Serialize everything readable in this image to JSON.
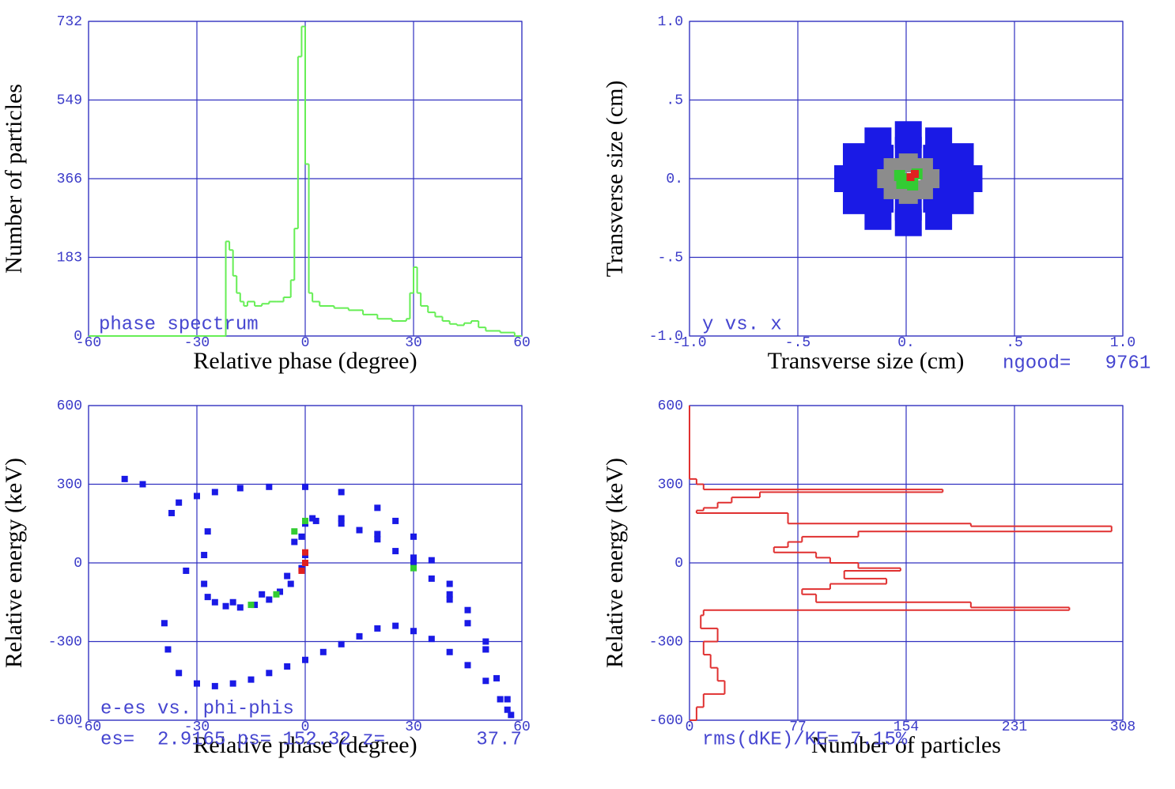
{
  "chart_data": [
    {
      "type": "step",
      "xlabel": "Relative phase (degree)",
      "ylabel": "Number of particles",
      "annotations": [
        "phase spectrum"
      ],
      "x": [
        -60,
        -22,
        -21,
        -20,
        -19,
        -18,
        -17,
        -16,
        -14,
        -12,
        -10,
        -8,
        -6,
        -4,
        -3,
        -2,
        -1,
        0,
        1,
        2,
        4,
        8,
        12,
        16,
        20,
        24,
        28,
        29,
        30,
        31,
        32,
        34,
        36,
        38,
        40,
        42,
        44,
        46,
        48,
        50,
        54,
        58,
        60
      ],
      "values": [
        0,
        220,
        200,
        140,
        100,
        80,
        70,
        80,
        70,
        75,
        80,
        80,
        90,
        130,
        250,
        650,
        720,
        400,
        100,
        80,
        70,
        65,
        60,
        50,
        40,
        35,
        40,
        100,
        160,
        100,
        70,
        55,
        45,
        35,
        28,
        25,
        30,
        35,
        20,
        12,
        8,
        0,
        0
      ],
      "color": "#66ee55",
      "grid": true,
      "xlim": [
        -60,
        60
      ],
      "xticks": [
        -60,
        -30,
        0,
        30,
        60
      ],
      "ylim": [
        0,
        732
      ],
      "yticks": [
        0,
        183,
        366,
        549,
        732
      ]
    },
    {
      "type": "scatter",
      "xlabel": "Transverse size (cm)",
      "ylabel": "Transverse size (cm)",
      "annotations": [
        "y vs. x",
        "ngood=   9761"
      ],
      "grid": true,
      "xlim": [
        -1,
        1
      ],
      "xticks": [
        {
          "value": -1,
          "label": "-1.0"
        },
        {
          "value": -0.5,
          "label": "-.5"
        },
        {
          "value": 0,
          "label": "0."
        },
        {
          "value": 0.5,
          "label": ".5"
        },
        {
          "value": 1,
          "label": "1.0"
        }
      ],
      "ylim": [
        -1,
        1
      ],
      "yticks": [
        {
          "value": -1,
          "label": "-1.0"
        },
        {
          "value": -0.5,
          "label": "-.5"
        },
        {
          "value": 0,
          "label": "0."
        },
        {
          "value": 0.5,
          "label": ".5"
        },
        {
          "value": 1,
          "label": "1.0"
        }
      ],
      "series": [
        {
          "color": "#1a1ae6",
          "x": [
            0.29,
            0.25,
            0.15,
            0.01,
            -0.13,
            -0.23,
            -0.27,
            -0.23,
            -0.13,
            0.01,
            0.15,
            0.25,
            0.19,
            0.14,
            0.01,
            -0.12,
            -0.17,
            -0.12,
            0.01,
            0.14
          ],
          "y": [
            0,
            0.14,
            0.24,
            0.28,
            0.24,
            0.14,
            0,
            -0.14,
            -0.24,
            -0.28,
            -0.24,
            -0.14,
            0,
            0.13,
            0.18,
            0.13,
            0,
            -0.13,
            -0.18,
            -0.13
          ]
        },
        {
          "color": "#8c8c8c",
          "x": [
            0.11,
            0.01,
            -0.09,
            0.01,
            0.08,
            -0.06,
            0.08,
            -0.06
          ],
          "y": [
            0,
            0.1,
            0,
            -0.1,
            0.07,
            -0.07,
            -0.07,
            0.07
          ]
        },
        {
          "color": "#33cc33",
          "x": [
            0.01,
            0.05,
            -0.03,
            0.03,
            -0.02
          ],
          "y": [
            0,
            0.03,
            0.02,
            -0.04,
            -0.03
          ]
        },
        {
          "color": "#e02020",
          "x": [
            0.02,
            0.04
          ],
          "y": [
            0.01,
            0.03
          ]
        }
      ]
    },
    {
      "type": "scatter",
      "xlabel": "Relative phase (degree)",
      "ylabel": "Relative energy (keV)",
      "annotations": [
        "e-es vs. phi-phis",
        "es=  2.9165 ps= 152.32 z=        37.7"
      ],
      "grid": true,
      "xlim": [
        -60,
        60
      ],
      "xticks": [
        -60,
        -30,
        0,
        30,
        60
      ],
      "ylim": [
        -600,
        600
      ],
      "yticks": [
        -600,
        -300,
        0,
        300,
        600
      ],
      "series": [
        {
          "color": "#1a1ae6",
          "x": [
            -39,
            -38,
            -35,
            -30,
            -25,
            -20,
            -15,
            -10,
            -5,
            0,
            5,
            10,
            15,
            20,
            25,
            30,
            35,
            40,
            45,
            50,
            54,
            57,
            -27,
            -28,
            -28,
            -27,
            -25,
            -22,
            -18,
            -14,
            -10,
            -7,
            -4,
            -1,
            0,
            -1,
            0,
            3,
            10,
            15,
            20,
            25,
            30,
            35,
            40,
            45,
            50,
            53,
            56,
            -35,
            -30,
            -25,
            -18,
            -10,
            0,
            10,
            20,
            25,
            30,
            35,
            40,
            45,
            50,
            56,
            -20,
            -12,
            -5,
            -3,
            2,
            10,
            20,
            30,
            40,
            50,
            -50,
            -45,
            -37,
            -33
          ],
          "y": [
            -230,
            -330,
            -420,
            -460,
            -470,
            -460,
            -445,
            -420,
            -395,
            -370,
            -340,
            -310,
            -280,
            -250,
            -240,
            -260,
            -290,
            -340,
            -390,
            -450,
            -520,
            -580,
            120,
            30,
            -80,
            -130,
            -150,
            -165,
            -170,
            -160,
            -140,
            -110,
            -80,
            -20,
            30,
            100,
            150,
            160,
            150,
            125,
            90,
            45,
            0,
            -60,
            -140,
            -230,
            -330,
            -440,
            -560,
            230,
            255,
            270,
            285,
            290,
            290,
            270,
            210,
            160,
            100,
            10,
            -80,
            -180,
            -300,
            -520,
            -150,
            -120,
            -50,
            80,
            170,
            170,
            110,
            20,
            -120,
            -330,
            320,
            300,
            190,
            -30
          ]
        },
        {
          "color": "#33cc33",
          "x": [
            -15,
            -8,
            -3,
            0,
            30
          ],
          "y": [
            -160,
            -120,
            120,
            160,
            -20
          ]
        },
        {
          "color": "#e02020",
          "x": [
            0,
            0,
            -1
          ],
          "y": [
            0,
            40,
            -30
          ]
        }
      ]
    },
    {
      "type": "step-h",
      "xlabel": "Number of particles",
      "ylabel": "Relative energy (keV)",
      "annotations": [
        "rms(dKE)/KE= 7.15%"
      ],
      "color": "#e03030",
      "grid": true,
      "y": [
        600,
        320,
        300,
        280,
        270,
        250,
        230,
        210,
        200,
        190,
        150,
        140,
        120,
        100,
        80,
        60,
        40,
        20,
        0,
        -20,
        -30,
        -60,
        -80,
        -100,
        -120,
        -150,
        -170,
        -180,
        -200,
        -250,
        -300,
        -350,
        -400,
        -450,
        -500,
        -550,
        -600
      ],
      "values": [
        0,
        5,
        10,
        180,
        50,
        30,
        20,
        10,
        5,
        70,
        200,
        300,
        120,
        80,
        70,
        60,
        90,
        100,
        120,
        150,
        110,
        140,
        100,
        80,
        90,
        200,
        270,
        10,
        8,
        20,
        10,
        15,
        20,
        25,
        10,
        5,
        0
      ],
      "xlim": [
        0,
        308
      ],
      "xticks": [
        0,
        77,
        154,
        231,
        308
      ],
      "ylim": [
        -600,
        600
      ],
      "yticks": [
        -600,
        -300,
        0,
        300,
        600
      ]
    }
  ]
}
